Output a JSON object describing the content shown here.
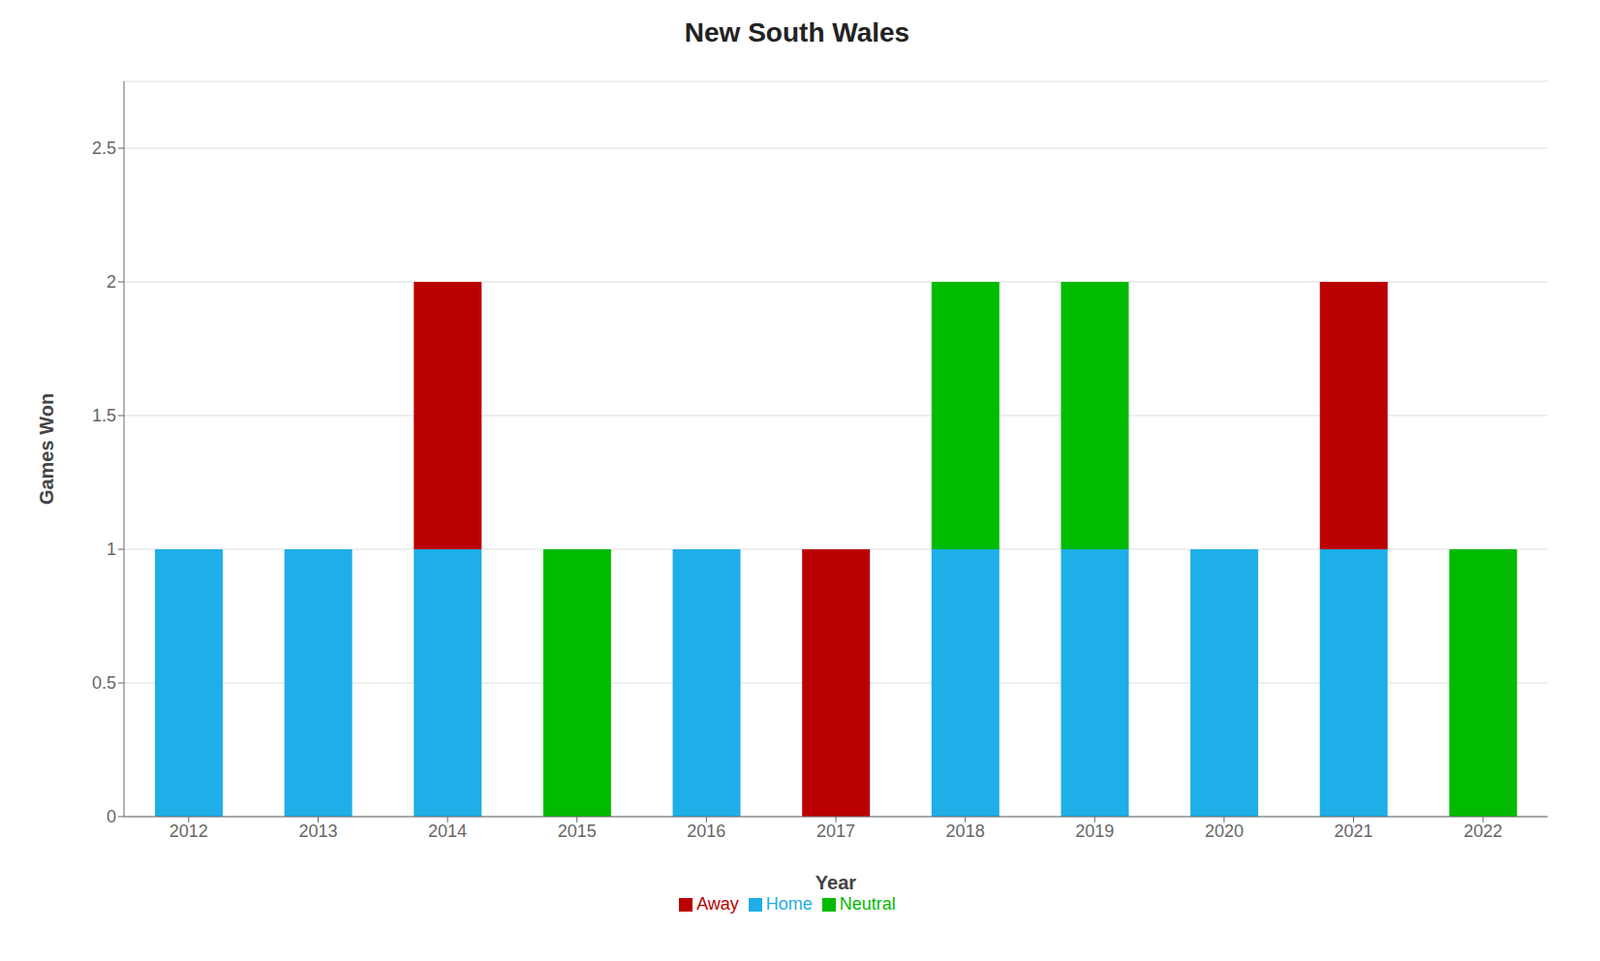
{
  "chart_data": {
    "type": "bar",
    "title": "New South Wales",
    "x_label": "Year",
    "y_label": "Games Won",
    "categories": [
      "2012",
      "2013",
      "2014",
      "2015",
      "2016",
      "2017",
      "2018",
      "2019",
      "2020",
      "2021",
      "2022"
    ],
    "series": [
      {
        "name": "Home",
        "color": "#1EAEE8",
        "values": [
          1,
          1,
          1,
          0,
          1,
          0,
          1,
          1,
          1,
          1,
          0
        ]
      },
      {
        "name": "Neutral",
        "color": "#00BB00",
        "values": [
          0,
          0,
          0,
          1,
          0,
          0,
          1,
          1,
          0,
          0,
          1
        ]
      },
      {
        "name": "Away",
        "color": "#BB0000",
        "values": [
          0,
          0,
          1,
          0,
          0,
          1,
          0,
          0,
          0,
          1,
          0
        ]
      }
    ],
    "ylim": [
      0,
      2.75
    ],
    "yticks": [
      0,
      0.5,
      1,
      1.5,
      2,
      2.5
    ],
    "stacked": true,
    "grid": true,
    "legend": "bottom"
  }
}
